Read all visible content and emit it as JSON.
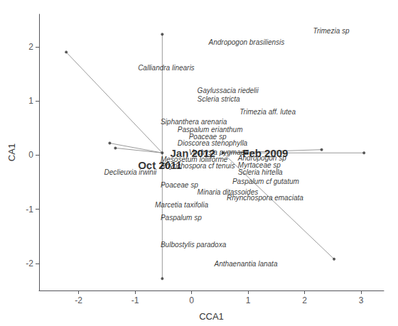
{
  "chart_data": {
    "type": "scatter",
    "xlabel": "CCA1",
    "ylabel": "CA1",
    "xlim": [
      -2.7,
      3.4
    ],
    "ylim": [
      -2.5,
      2.6
    ],
    "xticks": [
      -2,
      -1,
      0,
      1,
      2,
      3
    ],
    "yticks": [
      -2,
      -1,
      0,
      1,
      2
    ],
    "grid": false,
    "series": [
      {
        "type": "segments",
        "color": "#999999",
        "segments": [
          [
            -0.52,
            0.04,
            -2.22,
            1.9
          ],
          [
            -0.52,
            0.04,
            -0.52,
            2.23
          ],
          [
            -0.52,
            0.04,
            -1.45,
            0.22
          ],
          [
            -0.52,
            0.04,
            -1.35,
            0.13
          ],
          [
            -0.52,
            0.04,
            -0.52,
            -2.28
          ],
          [
            0.55,
            0.04,
            3.05,
            0.04
          ],
          [
            0.55,
            0.04,
            2.52,
            -1.92
          ],
          [
            0.55,
            0.04,
            2.3,
            0.1
          ]
        ]
      },
      {
        "type": "scatter",
        "color": "#333333",
        "x": [
          -2.22,
          -0.52,
          -1.45,
          -1.35,
          -0.52,
          3.05,
          2.52,
          2.3,
          -0.52,
          0.55
        ],
        "y": [
          1.9,
          2.23,
          0.22,
          0.13,
          -2.28,
          0.04,
          -1.92,
          0.1,
          0.04,
          0.04
        ]
      }
    ],
    "annotations": [
      {
        "text": "Trimezia sp",
        "x": 2.15,
        "y": 2.22
      },
      {
        "text": "Andropogon brasiliensis",
        "x": 0.3,
        "y": 2.02
      },
      {
        "text": "Calliandra linearis",
        "x": -0.95,
        "y": 1.55
      },
      {
        "text": "Gaylussacia riedelii",
        "x": 0.1,
        "y": 1.12
      },
      {
        "text": "Scleria stricta",
        "x": 0.1,
        "y": 0.97
      },
      {
        "text": "Trimezia aff. lutea",
        "x": 0.85,
        "y": 0.73
      },
      {
        "text": "Siphanthera arenaria",
        "x": -0.55,
        "y": 0.55
      },
      {
        "text": "Paspalum erianthum",
        "x": -0.25,
        "y": 0.4
      },
      {
        "text": "Poaceae sp",
        "x": -0.05,
        "y": 0.27
      },
      {
        "text": "Dioscorea stenophylla",
        "x": -0.25,
        "y": 0.15
      },
      {
        "text": "Vochysia pygmaea",
        "x": -0.05,
        "y": -0.02
      },
      {
        "text": "Mesosetum loliiforme",
        "x": -0.55,
        "y": -0.15
      },
      {
        "text": "Rhynchospora cf tenuis",
        "x": -0.55,
        "y": -0.27
      },
      {
        "text": "Declieuxia irwinii",
        "x": -1.55,
        "y": -0.38
      },
      {
        "text": "Poaceae sp",
        "x": -0.55,
        "y": -0.62
      },
      {
        "text": "Minaria ditassoides",
        "x": 0.1,
        "y": -0.75
      },
      {
        "text": "Marcetia taxifolia",
        "x": -0.65,
        "y": -0.98
      },
      {
        "text": "Paspalum sp",
        "x": -0.55,
        "y": -1.22
      },
      {
        "text": "Bulbostylis paradoxa",
        "x": -0.55,
        "y": -1.72
      },
      {
        "text": "Anthaenantia lanata",
        "x": 0.4,
        "y": -2.08
      },
      {
        "text": "Andropogon sp",
        "x": 0.82,
        "y": -0.12
      },
      {
        "text": "Myrtaceae sp",
        "x": 0.82,
        "y": -0.25
      },
      {
        "text": "Scleria hirtella",
        "x": 0.82,
        "y": -0.38
      },
      {
        "text": "Paspalum cf gutatum",
        "x": 0.72,
        "y": -0.55
      },
      {
        "text": "Rhynchospora emaciata",
        "x": 0.62,
        "y": -0.85
      }
    ],
    "row_labels": [
      {
        "text": "Jan 2012",
        "x": -0.38,
        "y": 0.04
      },
      {
        "text": "Oct 2011",
        "x": -0.95,
        "y": -0.18
      },
      {
        "text": "Feb 2009",
        "x": 0.9,
        "y": 0.04
      }
    ]
  }
}
